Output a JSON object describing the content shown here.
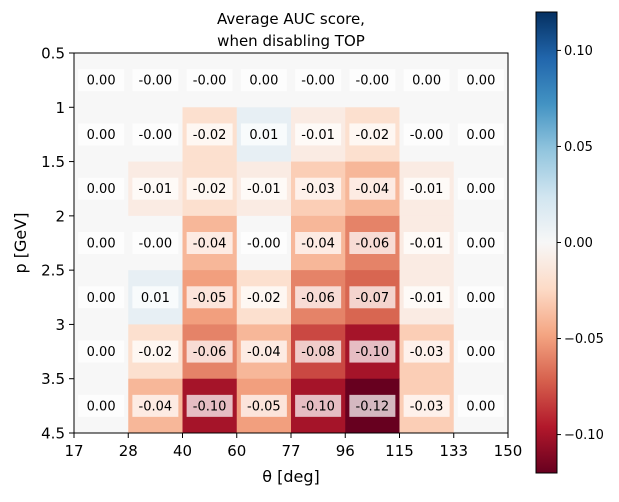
{
  "chart_data": {
    "type": "heatmap",
    "title_lines": [
      "Average AUC score,",
      "when disabling TOP"
    ],
    "xlabel": "θ [deg]",
    "ylabel": "p [GeV]",
    "x_tick_labels": [
      "17",
      "28",
      "40",
      "60",
      "77",
      "96",
      "115",
      "133",
      "150"
    ],
    "y_tick_labels": [
      "0.5",
      "1",
      "1.5",
      "2",
      "2.5",
      "3",
      "3.5",
      "4.5"
    ],
    "values": [
      [
        0.0,
        -0.0,
        -0.0,
        0.0,
        -0.0,
        -0.0,
        0.0,
        0.0
      ],
      [
        0.0,
        -0.0,
        -0.02,
        0.01,
        -0.01,
        -0.02,
        -0.0,
        0.0
      ],
      [
        0.0,
        -0.01,
        -0.02,
        -0.01,
        -0.03,
        -0.04,
        -0.01,
        0.0
      ],
      [
        0.0,
        -0.0,
        -0.04,
        -0.0,
        -0.04,
        -0.06,
        -0.01,
        0.0
      ],
      [
        0.0,
        0.01,
        -0.05,
        -0.02,
        -0.06,
        -0.07,
        -0.01,
        0.0
      ],
      [
        0.0,
        -0.02,
        -0.06,
        -0.04,
        -0.08,
        -0.1,
        -0.03,
        0.0
      ],
      [
        0.0,
        -0.04,
        -0.1,
        -0.05,
        -0.1,
        -0.12,
        -0.03,
        0.0
      ]
    ],
    "cell_labels": [
      [
        "0.00",
        "-0.00",
        "-0.00",
        "0.00",
        "-0.00",
        "-0.00",
        "0.00",
        "0.00"
      ],
      [
        "0.00",
        "-0.00",
        "-0.02",
        "0.01",
        "-0.01",
        "-0.02",
        "-0.00",
        "0.00"
      ],
      [
        "0.00",
        "-0.01",
        "-0.02",
        "-0.01",
        "-0.03",
        "-0.04",
        "-0.01",
        "0.00"
      ],
      [
        "0.00",
        "-0.00",
        "-0.04",
        "-0.00",
        "-0.04",
        "-0.06",
        "-0.01",
        "0.00"
      ],
      [
        "0.00",
        "0.01",
        "-0.05",
        "-0.02",
        "-0.06",
        "-0.07",
        "-0.01",
        "0.00"
      ],
      [
        "0.00",
        "-0.02",
        "-0.06",
        "-0.04",
        "-0.08",
        "-0.10",
        "-0.03",
        "0.00"
      ],
      [
        "0.00",
        "-0.04",
        "-0.10",
        "-0.05",
        "-0.10",
        "-0.12",
        "-0.03",
        "0.00"
      ]
    ],
    "colorscale": "RdBu",
    "color_range": [
      -0.12,
      0.12
    ],
    "colorbar_ticks": [
      0.1,
      0.05,
      0.0,
      -0.05,
      -0.1
    ],
    "colorbar_tick_labels": [
      "0.10",
      "0.05",
      "0.00",
      "−0.05",
      "−0.10"
    ],
    "grid": false,
    "legend": "colorbar-right"
  }
}
